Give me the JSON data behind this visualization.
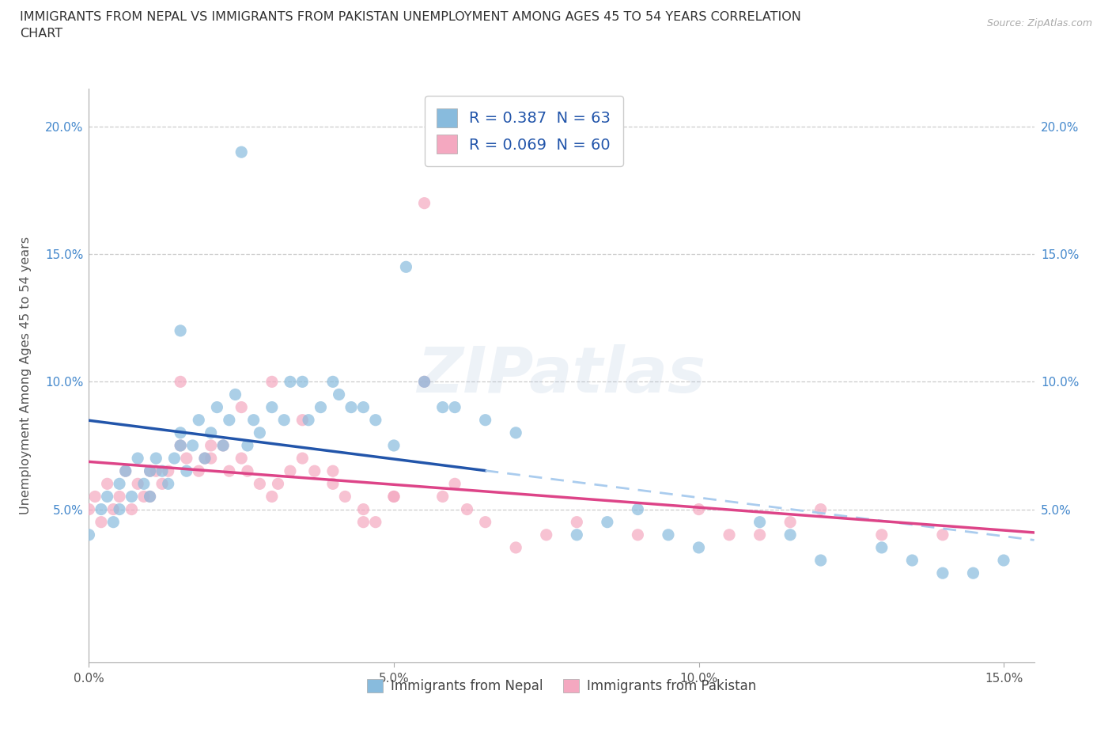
{
  "title_line1": "IMMIGRANTS FROM NEPAL VS IMMIGRANTS FROM PAKISTAN UNEMPLOYMENT AMONG AGES 45 TO 54 YEARS CORRELATION",
  "title_line2": "CHART",
  "source": "Source: ZipAtlas.com",
  "ylabel": "Unemployment Among Ages 45 to 54 years",
  "xlim": [
    0.0,
    0.155
  ],
  "ylim": [
    -0.01,
    0.215
  ],
  "xticks": [
    0.0,
    0.05,
    0.1,
    0.15
  ],
  "xtick_labels": [
    "0.0%",
    "5.0%",
    "10.0%",
    "15.0%"
  ],
  "yticks": [
    0.05,
    0.1,
    0.15,
    0.2
  ],
  "ytick_labels": [
    "5.0%",
    "10.0%",
    "15.0%",
    "20.0%"
  ],
  "nepal_R": 0.387,
  "nepal_N": 63,
  "pakistan_R": 0.069,
  "pakistan_N": 60,
  "nepal_color": "#88bbdd",
  "pakistan_color": "#f4a8c0",
  "nepal_line_color": "#2255aa",
  "pakistan_line_color": "#dd4488",
  "nepal_dash_color": "#aaccee",
  "tick_color_y": "#4488cc",
  "watermark": "ZIPatlas",
  "background": "#ffffff",
  "grid_color": "#cccccc",
  "title_fontsize": 11.5,
  "label_fontsize": 11,
  "source_fontsize": 9,
  "nepal_x": [
    0.0,
    0.002,
    0.003,
    0.004,
    0.005,
    0.005,
    0.006,
    0.007,
    0.008,
    0.009,
    0.01,
    0.01,
    0.011,
    0.012,
    0.013,
    0.014,
    0.015,
    0.015,
    0.016,
    0.017,
    0.018,
    0.019,
    0.02,
    0.021,
    0.022,
    0.023,
    0.024,
    0.025,
    0.026,
    0.027,
    0.028,
    0.03,
    0.032,
    0.033,
    0.035,
    0.036,
    0.038,
    0.04,
    0.041,
    0.043,
    0.045,
    0.047,
    0.05,
    0.052,
    0.055,
    0.058,
    0.06,
    0.065,
    0.07,
    0.08,
    0.085,
    0.09,
    0.095,
    0.1,
    0.11,
    0.115,
    0.12,
    0.13,
    0.135,
    0.14,
    0.145,
    0.15,
    0.015
  ],
  "nepal_y": [
    0.04,
    0.05,
    0.055,
    0.045,
    0.06,
    0.05,
    0.065,
    0.055,
    0.07,
    0.06,
    0.065,
    0.055,
    0.07,
    0.065,
    0.06,
    0.07,
    0.075,
    0.08,
    0.065,
    0.075,
    0.085,
    0.07,
    0.08,
    0.09,
    0.075,
    0.085,
    0.095,
    0.19,
    0.075,
    0.085,
    0.08,
    0.09,
    0.085,
    0.1,
    0.1,
    0.085,
    0.09,
    0.1,
    0.095,
    0.09,
    0.09,
    0.085,
    0.075,
    0.145,
    0.1,
    0.09,
    0.09,
    0.085,
    0.08,
    0.04,
    0.045,
    0.05,
    0.04,
    0.035,
    0.045,
    0.04,
    0.03,
    0.035,
    0.03,
    0.025,
    0.025,
    0.03,
    0.12
  ],
  "pakistan_x": [
    0.0,
    0.001,
    0.002,
    0.003,
    0.004,
    0.005,
    0.006,
    0.007,
    0.008,
    0.009,
    0.01,
    0.011,
    0.012,
    0.013,
    0.015,
    0.016,
    0.018,
    0.019,
    0.02,
    0.022,
    0.023,
    0.025,
    0.026,
    0.028,
    0.03,
    0.031,
    0.033,
    0.035,
    0.037,
    0.04,
    0.042,
    0.045,
    0.047,
    0.05,
    0.055,
    0.058,
    0.06,
    0.062,
    0.065,
    0.07,
    0.075,
    0.08,
    0.09,
    0.1,
    0.105,
    0.11,
    0.115,
    0.12,
    0.13,
    0.14,
    0.055,
    0.03,
    0.025,
    0.035,
    0.04,
    0.045,
    0.05,
    0.015,
    0.02,
    0.01
  ],
  "pakistan_y": [
    0.05,
    0.055,
    0.045,
    0.06,
    0.05,
    0.055,
    0.065,
    0.05,
    0.06,
    0.055,
    0.055,
    0.065,
    0.06,
    0.065,
    0.075,
    0.07,
    0.065,
    0.07,
    0.07,
    0.075,
    0.065,
    0.07,
    0.065,
    0.06,
    0.055,
    0.06,
    0.065,
    0.07,
    0.065,
    0.06,
    0.055,
    0.05,
    0.045,
    0.055,
    0.17,
    0.055,
    0.06,
    0.05,
    0.045,
    0.035,
    0.04,
    0.045,
    0.04,
    0.05,
    0.04,
    0.04,
    0.045,
    0.05,
    0.04,
    0.04,
    0.1,
    0.1,
    0.09,
    0.085,
    0.065,
    0.045,
    0.055,
    0.1,
    0.075,
    0.065
  ]
}
